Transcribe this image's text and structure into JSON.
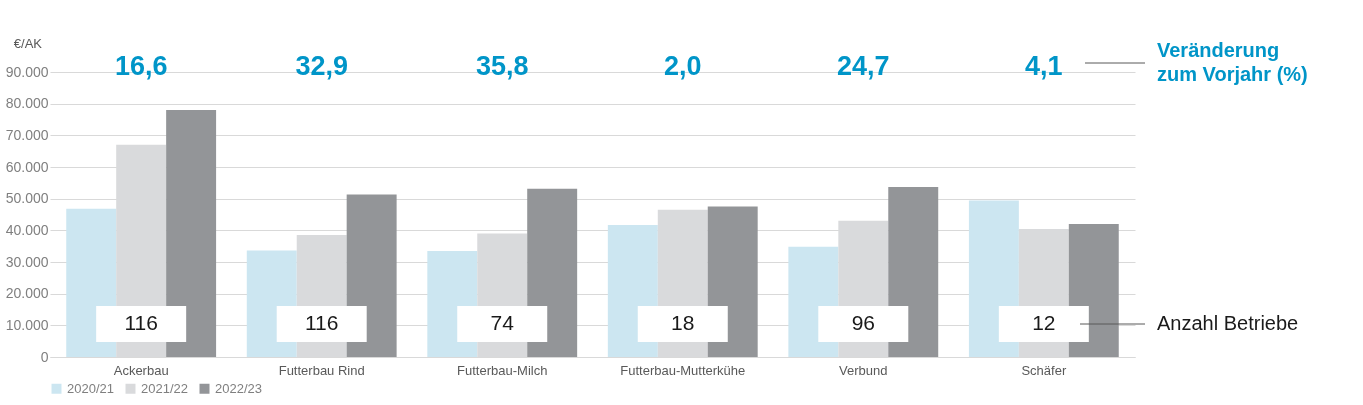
{
  "chart_data": {
    "type": "bar",
    "ylabel": "€/AK",
    "categories": [
      "Ackerbau",
      "Futterbau Rind",
      "Futterbau-Milch",
      "Futterbau-Mutterkühe",
      "Verbund",
      "Schäfer"
    ],
    "series": [
      {
        "name": "2020/21",
        "color": "#cce6f1",
        "values": [
          46800,
          33600,
          33500,
          41700,
          34800,
          49400
        ]
      },
      {
        "name": "2021/22",
        "color": "#d9dadc",
        "values": [
          67000,
          38500,
          39000,
          46500,
          43000,
          40400
        ]
      },
      {
        "name": "2022/23",
        "color": "#939598",
        "values": [
          78000,
          51300,
          53100,
          47500,
          53700,
          42000
        ]
      }
    ],
    "ylim": [
      0,
      90000
    ],
    "yticks": [
      0,
      {
        "value": 10000,
        "label": "10.000"
      },
      {
        "value": 20000,
        "label": "20.000"
      },
      {
        "value": 30000,
        "label": "30.000"
      },
      {
        "value": 40000,
        "label": "40.000"
      },
      {
        "value": 50000,
        "label": "50.000"
      },
      {
        "value": 60000,
        "label": "60.000"
      },
      {
        "value": 70000,
        "label": "70.000"
      },
      {
        "value": 80000,
        "label": "80.000"
      },
      {
        "value": 90000,
        "label": "90.000"
      }
    ],
    "grid": "y",
    "legend": "bottom",
    "annotations": [
      "16,6",
      "32,9",
      "35,8",
      "2,0",
      "24,7",
      "4,1",
      "116",
      "116",
      "74",
      "18",
      "96",
      "12",
      "Veränderung zum Vorjahr (%)",
      "Anzahl Betriebe"
    ]
  }
}
